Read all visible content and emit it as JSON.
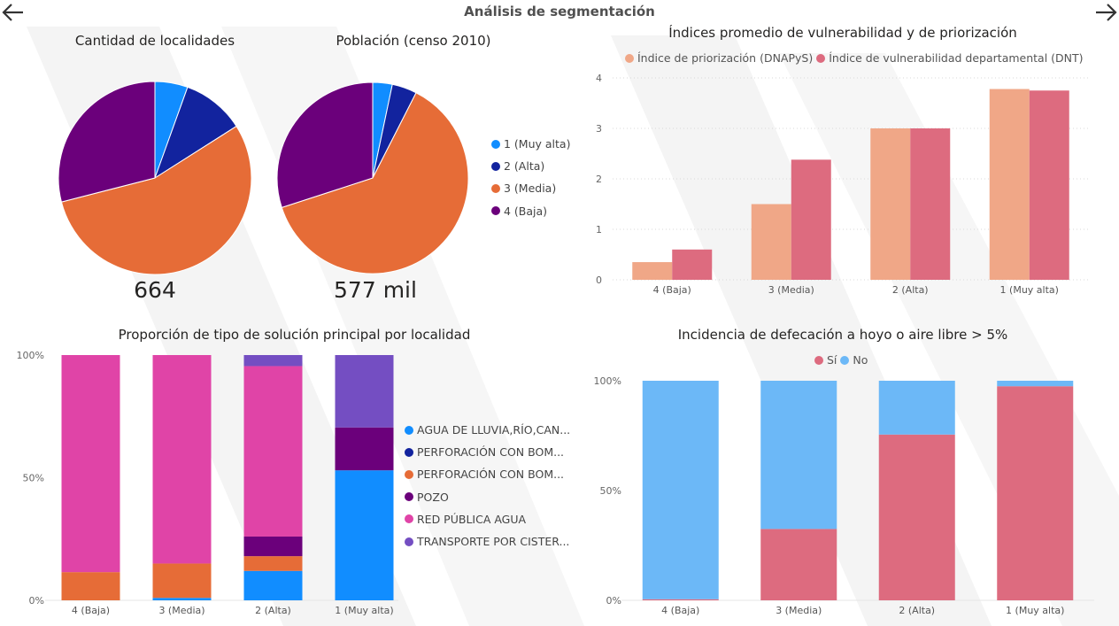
{
  "header": {
    "title": "Análisis de segmentación",
    "back_icon": "arrow-left-icon",
    "forward_icon": "arrow-right-icon"
  },
  "segments": [
    {
      "label": "1 (Muy alta)",
      "color": "#118DFF"
    },
    {
      "label": "2 (Alta)",
      "color": "#12239E"
    },
    {
      "label": "3 (Media)",
      "color": "#E66C37"
    },
    {
      "label": "4 (Baja)",
      "color": "#6B007B"
    }
  ],
  "pie_localidades": {
    "title": "Cantidad de localidades",
    "total": "664",
    "chart_data": {
      "type": "pie",
      "labels": [
        "1 (Muy alta)",
        "2 (Alta)",
        "3 (Media)",
        "4 (Baja)"
      ],
      "values": [
        5.5,
        10.5,
        55.0,
        29.0
      ],
      "unit": "%"
    }
  },
  "pie_poblacion": {
    "title": "Población (censo 2010)",
    "total": "577 mil",
    "chart_data": {
      "type": "pie",
      "labels": [
        "1 (Muy alta)",
        "2 (Alta)",
        "3 (Media)",
        "4 (Baja)"
      ],
      "values": [
        3.3,
        4.2,
        62.5,
        30.0
      ],
      "unit": "%"
    }
  },
  "indices": {
    "title": "Índices promedio de vulnerabilidad y de priorización",
    "chart_data": {
      "type": "bar",
      "categories": [
        "4 (Baja)",
        "3 (Media)",
        "2 (Alta)",
        "1 (Muy alta)"
      ],
      "series": [
        {
          "name": "Índice de priorización (DNAPyS)",
          "color": "#F0A787",
          "values": [
            0.35,
            1.5,
            3.0,
            3.78
          ]
        },
        {
          "name": "Índice de vulnerabilidad departamental (DNT)",
          "color": "#DD6B7F",
          "values": [
            0.6,
            2.38,
            3.0,
            3.75
          ]
        }
      ],
      "ylim": [
        0,
        4
      ],
      "yticks": [
        "0",
        "1",
        "2",
        "3",
        "4"
      ],
      "grid": true
    }
  },
  "solucion": {
    "title": "Proporción de tipo de solución principal por localidad",
    "chart_data": {
      "type": "bar",
      "stacked": "percent",
      "categories": [
        "4 (Baja)",
        "3 (Media)",
        "2 (Alta)",
        "1 (Muy alta)"
      ],
      "series": [
        {
          "name": "AGUA DE LLUVIA,RÍO,CAN...",
          "color": "#118DFF",
          "values": [
            0,
            1,
            12,
            53
          ]
        },
        {
          "name": "PERFORACIÓN CON BOM...",
          "color": "#12239E",
          "values": [
            0,
            0,
            0,
            0
          ]
        },
        {
          "name": "PERFORACIÓN CON BOM...",
          "color": "#E66C37",
          "values": [
            11.5,
            14,
            6,
            0
          ]
        },
        {
          "name": "POZO",
          "color": "#6B007B",
          "values": [
            0,
            0,
            8,
            17.5
          ]
        },
        {
          "name": "RED PÚBLICA AGUA",
          "color": "#E044A7",
          "values": [
            88.5,
            85,
            69.5,
            0
          ]
        },
        {
          "name": "TRANSPORTE POR CISTER...",
          "color": "#744EC2",
          "values": [
            0,
            0,
            4.5,
            29.5
          ]
        }
      ],
      "yticks": [
        "0%",
        "50%",
        "100%"
      ]
    }
  },
  "defecacion": {
    "title": "Incidencia de defecación a hoyo o aire libre > 5%",
    "chart_data": {
      "type": "bar",
      "stacked": "percent",
      "categories": [
        "4 (Baja)",
        "3 (Media)",
        "2 (Alta)",
        "1 (Muy alta)"
      ],
      "series": [
        {
          "name": "Sí",
          "color": "#DD6B7F",
          "values": [
            0.5,
            32.5,
            75.5,
            97.5
          ]
        },
        {
          "name": "No",
          "color": "#6CB8F7",
          "values": [
            99.5,
            67.5,
            24.5,
            2.5
          ]
        }
      ],
      "yticks": [
        "0%",
        "50%",
        "100%"
      ]
    }
  }
}
